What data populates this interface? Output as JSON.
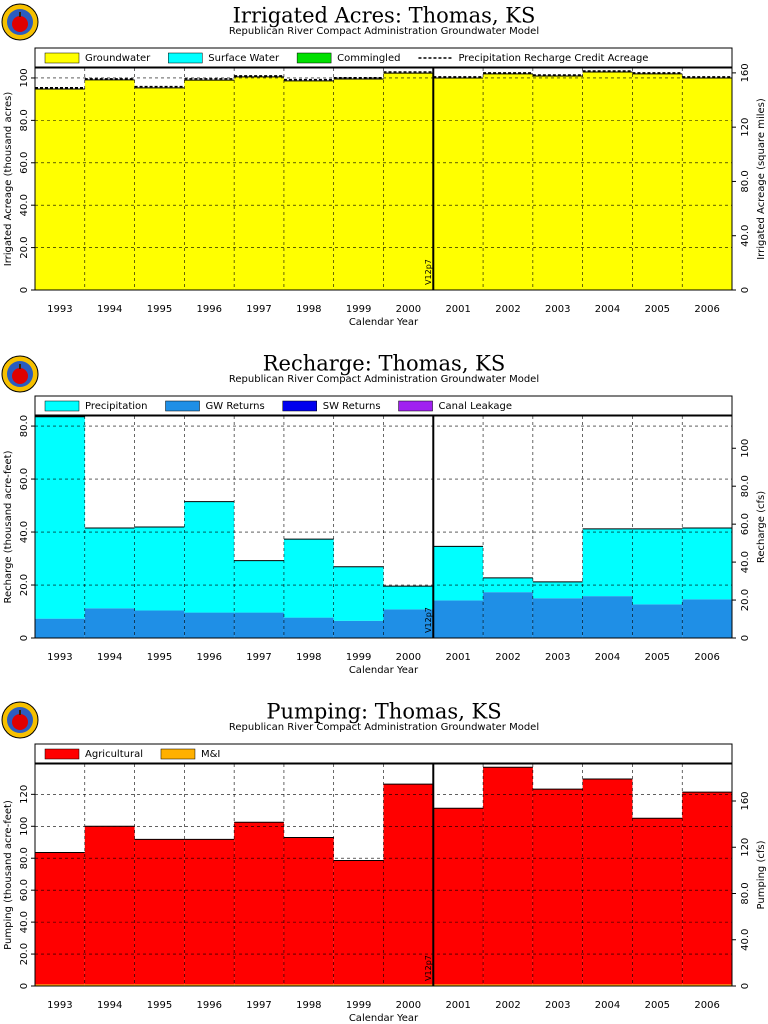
{
  "chart_data": [
    {
      "type": "bar",
      "stacked": true,
      "grid": true,
      "title": "Irrigated Acres: Thomas, KS",
      "subtitle": "Republican River Compact Administration Groundwater Model",
      "xlabel": "Calendar Year",
      "ylabel": "Irrigated Acreage (thousand acres)",
      "y2label": "Irrigated Acreage (square miles)",
      "annotation": "V12p7",
      "categories": [
        "1993",
        "1994",
        "1995",
        "1996",
        "1997",
        "1998",
        "1999",
        "2000",
        "2001",
        "2002",
        "2003",
        "2004",
        "2005",
        "2006"
      ],
      "ylim": [
        0,
        104.7
      ],
      "yticks": [
        0,
        {
          "value": 20,
          "label": "20.0"
        },
        {
          "value": 40,
          "label": "40.0"
        },
        {
          "value": 60,
          "label": "60.0"
        },
        {
          "value": 80,
          "label": "80.0"
        },
        100
      ],
      "y2lim": [
        0,
        163.6
      ],
      "y2ticks": [
        0,
        {
          "value": 40,
          "label": "40.0"
        },
        {
          "value": 80,
          "label": "80.0"
        },
        120,
        160
      ],
      "series": [
        {
          "name": "Groundwater",
          "color": "#ffff00",
          "values": [
            94.8,
            99.1,
            95.3,
            99.0,
            100.5,
            98.6,
            99.5,
            102.3,
            100.0,
            101.9,
            100.9,
            102.8,
            101.9,
            100.0
          ]
        },
        {
          "name": "Surface Water",
          "color": "#00ffff",
          "values": [
            0,
            0,
            0,
            0,
            0,
            0,
            0,
            0,
            0,
            0,
            0,
            0,
            0,
            0
          ]
        },
        {
          "name": "Commingled",
          "color": "#00e000",
          "values": [
            0,
            0,
            0,
            0,
            0,
            0,
            0,
            0,
            0,
            0,
            0,
            0,
            0,
            0
          ]
        },
        {
          "name": "Precipitation Recharge Credit Acreage",
          "color": "#000000",
          "line_style": "dashed",
          "values": [
            95.4,
            99.6,
            95.9,
            99.6,
            101.0,
            99.2,
            100.1,
            102.8,
            100.5,
            102.4,
            101.4,
            103.3,
            102.4,
            100.5
          ]
        }
      ]
    },
    {
      "type": "bar",
      "stacked": true,
      "grid": true,
      "title": "Recharge: Thomas, KS",
      "subtitle": "Republican River Compact Administration Groundwater Model",
      "xlabel": "Calendar Year",
      "ylabel": "Recharge (thousand acre-feet)",
      "y2label": "Recharge (cfs)",
      "annotation": "V12p7",
      "categories": [
        "1993",
        "1994",
        "1995",
        "1996",
        "1997",
        "1998",
        "1999",
        "2000",
        "2001",
        "2002",
        "2003",
        "2004",
        "2005",
        "2006"
      ],
      "ylim": [
        0,
        83.8
      ],
      "yticks": [
        0,
        {
          "value": 20,
          "label": "20.0"
        },
        {
          "value": 40,
          "label": "40.0"
        },
        {
          "value": 60,
          "label": "60.0"
        },
        {
          "value": 80,
          "label": "80.0"
        }
      ],
      "y2lim": [
        0,
        117
      ],
      "y2ticks": [
        0,
        {
          "value": 20,
          "label": "20.0"
        },
        {
          "value": 40,
          "label": "40.0"
        },
        {
          "value": 60,
          "label": "60.0"
        },
        {
          "value": 80,
          "label": "80.0"
        },
        100
      ],
      "series": [
        {
          "name": "GW Returns",
          "color": "#1f8fe6",
          "values": [
            7.3,
            11.2,
            10.4,
            9.6,
            9.6,
            7.7,
            6.5,
            10.8,
            14.2,
            17.3,
            15.0,
            15.8,
            12.7,
            14.6
          ]
        },
        {
          "name": "Precipitation",
          "color": "#00ffff",
          "values": [
            76.2,
            30.3,
            31.5,
            41.9,
            19.6,
            29.6,
            20.4,
            8.8,
            20.4,
            5.4,
            6.2,
            25.4,
            28.5,
            26.9
          ]
        },
        {
          "name": "SW Returns",
          "color": "#0000ee",
          "values": [
            0,
            0,
            0,
            0,
            0,
            0,
            0,
            0,
            0,
            0,
            0,
            0,
            0,
            0
          ]
        },
        {
          "name": "Canal Leakage",
          "color": "#a020f0",
          "values": [
            0,
            0,
            0,
            0,
            0,
            0,
            0,
            0,
            0,
            0,
            0,
            0,
            0,
            0
          ]
        }
      ],
      "legend_order": [
        1,
        0,
        2,
        3
      ]
    },
    {
      "type": "bar",
      "stacked": true,
      "grid": true,
      "title": "Pumping: Thomas, KS",
      "subtitle": "Republican River Compact Administration Groundwater Model",
      "xlabel": "Calendar Year",
      "ylabel": "Pumping (thousand acre-feet)",
      "y2label": "Pumping (cfs)",
      "annotation": "V12p7",
      "categories": [
        "1993",
        "1994",
        "1995",
        "1996",
        "1997",
        "1998",
        "1999",
        "2000",
        "2001",
        "2002",
        "2003",
        "2004",
        "2005",
        "2006"
      ],
      "ylim": [
        0,
        139
      ],
      "yticks": [
        0,
        {
          "value": 20,
          "label": "20.0"
        },
        {
          "value": 40,
          "label": "40.0"
        },
        {
          "value": 60,
          "label": "60.0"
        },
        {
          "value": 80,
          "label": "80.0"
        },
        100,
        120
      ],
      "y2lim": [
        0,
        192
      ],
      "y2ticks": [
        0,
        {
          "value": 40,
          "label": "40.0"
        },
        {
          "value": 80,
          "label": "80.0"
        },
        120,
        160
      ],
      "series": [
        {
          "name": "M&I",
          "color": "#ffb000",
          "values": [
            1.0,
            1.0,
            1.0,
            1.0,
            1.0,
            1.0,
            1.0,
            1.0,
            1.0,
            1.0,
            1.0,
            1.0,
            1.0,
            1.0
          ]
        },
        {
          "name": "Agricultural",
          "color": "#ff0000",
          "values": [
            82.6,
            99.0,
            90.8,
            90.8,
            101.5,
            92.0,
            77.6,
            125.4,
            110.3,
            136.0,
            122.3,
            128.6,
            104.0,
            120.4
          ]
        }
      ],
      "legend_order": [
        1,
        0
      ]
    }
  ]
}
